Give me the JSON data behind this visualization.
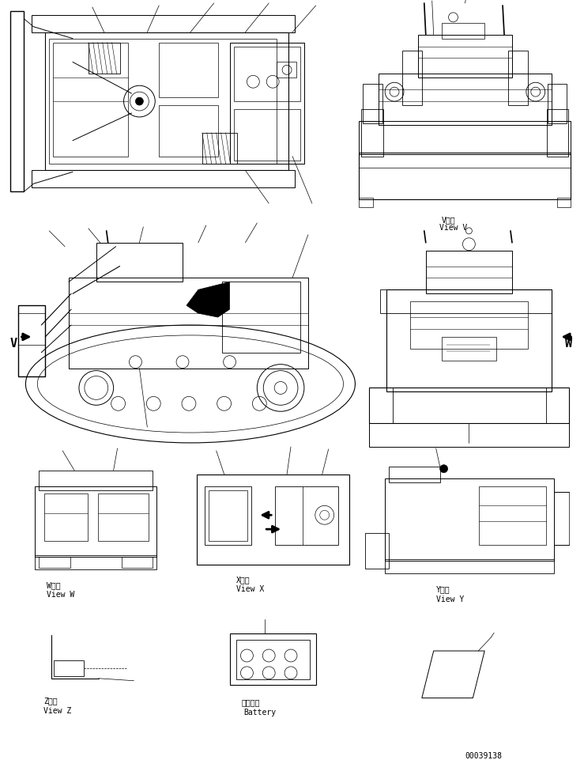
{
  "background_color": "#ffffff",
  "fig_width": 7.39,
  "fig_height": 9.62,
  "dpi": 100,
  "part_number": "00039138",
  "lc": "#000000",
  "tc": "#000000",
  "fs": 7,
  "fs_small": 6,
  "label_V_jp": "V　視",
  "label_V_en": "View V",
  "label_W_jp": "W　視",
  "label_W_en": "View W",
  "label_X_jp": "X　視",
  "label_X_en": "View X",
  "label_Y_jp": "Y　視",
  "label_Y_en": "View Y",
  "label_Z_jp": "Z　視",
  "label_Z_en": "View Z",
  "label_bat_jp": "バッテリ",
  "label_bat_en": "Battery"
}
